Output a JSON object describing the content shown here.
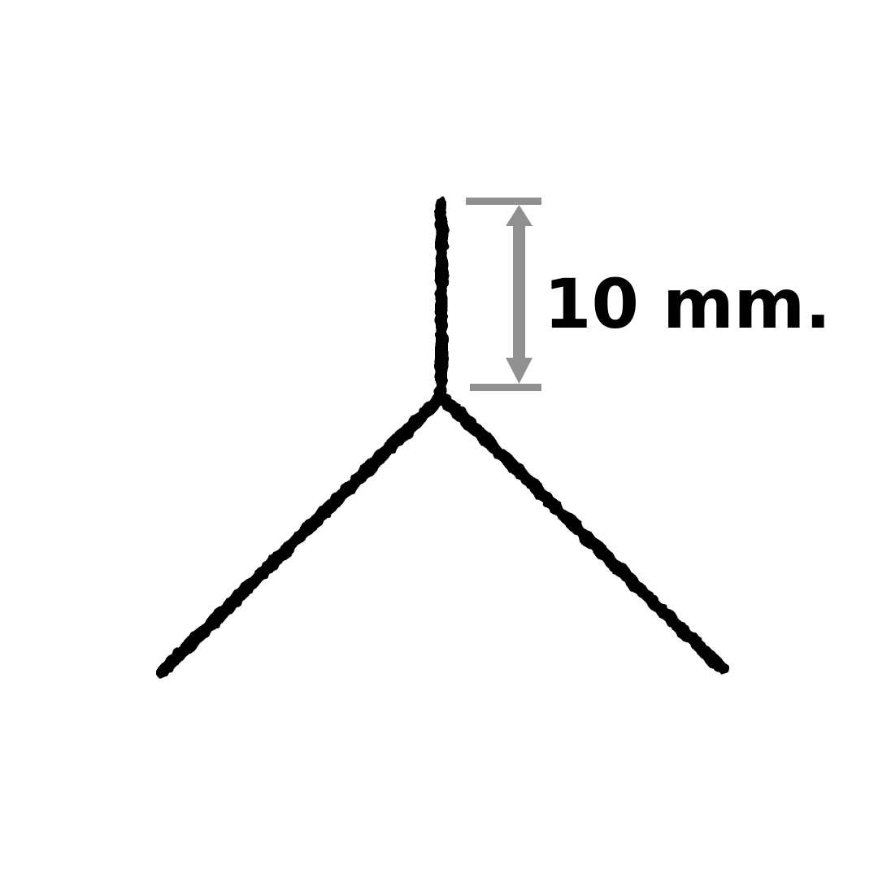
{
  "diagram": {
    "dimension_label": "10 mm.",
    "colors": {
      "background": "#ffffff",
      "profile": "#000000",
      "dimension_line": "#909090",
      "label": "#000000"
    }
  }
}
